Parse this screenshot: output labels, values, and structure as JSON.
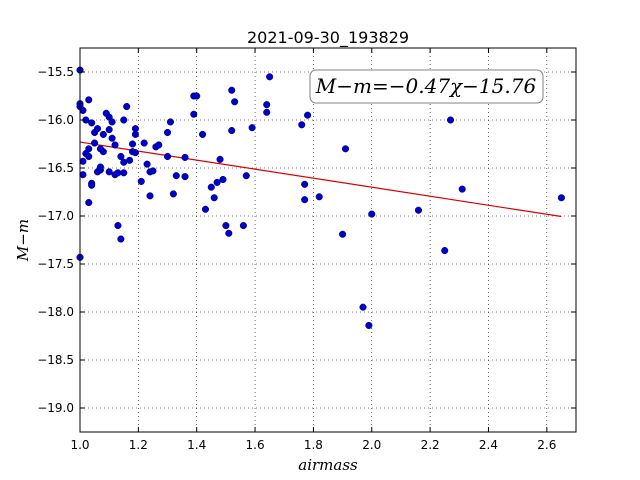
{
  "chart_data": {
    "type": "scatter",
    "title": "2021-09-30_193829",
    "xlabel": "airmass",
    "ylabel": "M−m",
    "xlim": [
      1.0,
      2.7
    ],
    "ylim": [
      -15.25,
      -19.25
    ],
    "y_inverted": true,
    "grid": true,
    "x_ticks": [
      1.0,
      1.2,
      1.4,
      1.6,
      1.8,
      2.0,
      2.2,
      2.4,
      2.6
    ],
    "x_tick_labels": [
      "1.0",
      "1.2",
      "1.4",
      "1.6",
      "1.8",
      "2.0",
      "2.2",
      "2.4",
      "2.6"
    ],
    "y_ticks": [
      -15.5,
      -16.0,
      -16.5,
      -17.0,
      -17.5,
      -18.0,
      -18.5,
      -19.0
    ],
    "y_tick_labels": [
      "−15.5",
      "−16.0",
      "−16.5",
      "−17.0",
      "−17.5",
      "−18.0",
      "−18.5",
      "−19.0"
    ],
    "annotation": "M−m=−0.47χ−15.76",
    "point_color": "#0000cc",
    "fit_color": "#dd0000",
    "fit": {
      "slope": -0.47,
      "intercept": -15.76,
      "x_range": [
        1.0,
        2.65
      ]
    },
    "points": [
      {
        "x": 1.0,
        "y": -15.48
      },
      {
        "x": 1.0,
        "y": -17.43
      },
      {
        "x": 1.0,
        "y": -15.83
      },
      {
        "x": 1.0,
        "y": -15.86
      },
      {
        "x": 1.01,
        "y": -15.9
      },
      {
        "x": 1.01,
        "y": -16.57
      },
      {
        "x": 1.01,
        "y": -16.43
      },
      {
        "x": 1.02,
        "y": -16.0
      },
      {
        "x": 1.02,
        "y": -16.35
      },
      {
        "x": 1.03,
        "y": -15.79
      },
      {
        "x": 1.03,
        "y": -16.3
      },
      {
        "x": 1.03,
        "y": -16.38
      },
      {
        "x": 1.03,
        "y": -16.86
      },
      {
        "x": 1.04,
        "y": -16.03
      },
      {
        "x": 1.04,
        "y": -16.66
      },
      {
        "x": 1.04,
        "y": -16.68
      },
      {
        "x": 1.05,
        "y": -16.13
      },
      {
        "x": 1.05,
        "y": -16.24
      },
      {
        "x": 1.06,
        "y": -16.54
      },
      {
        "x": 1.06,
        "y": -16.09
      },
      {
        "x": 1.07,
        "y": -16.52
      },
      {
        "x": 1.07,
        "y": -16.3
      },
      {
        "x": 1.07,
        "y": -16.49
      },
      {
        "x": 1.08,
        "y": -16.33
      },
      {
        "x": 1.08,
        "y": -16.15
      },
      {
        "x": 1.09,
        "y": -15.93
      },
      {
        "x": 1.1,
        "y": -16.1
      },
      {
        "x": 1.1,
        "y": -15.97
      },
      {
        "x": 1.1,
        "y": -16.54
      },
      {
        "x": 1.11,
        "y": -16.19
      },
      {
        "x": 1.11,
        "y": -16.02
      },
      {
        "x": 1.12,
        "y": -16.57
      },
      {
        "x": 1.12,
        "y": -16.26
      },
      {
        "x": 1.13,
        "y": -16.55
      },
      {
        "x": 1.13,
        "y": -17.1
      },
      {
        "x": 1.14,
        "y": -16.38
      },
      {
        "x": 1.14,
        "y": -17.24
      },
      {
        "x": 1.15,
        "y": -16.55
      },
      {
        "x": 1.15,
        "y": -16.44
      },
      {
        "x": 1.15,
        "y": -16.0
      },
      {
        "x": 1.16,
        "y": -15.86
      },
      {
        "x": 1.17,
        "y": -16.42
      },
      {
        "x": 1.18,
        "y": -16.33
      },
      {
        "x": 1.18,
        "y": -16.25
      },
      {
        "x": 1.19,
        "y": -16.09
      },
      {
        "x": 1.19,
        "y": -16.15
      },
      {
        "x": 1.19,
        "y": -16.34
      },
      {
        "x": 1.21,
        "y": -16.64
      },
      {
        "x": 1.22,
        "y": -16.24
      },
      {
        "x": 1.23,
        "y": -16.46
      },
      {
        "x": 1.24,
        "y": -16.54
      },
      {
        "x": 1.24,
        "y": -16.79
      },
      {
        "x": 1.25,
        "y": -16.53
      },
      {
        "x": 1.26,
        "y": -16.28
      },
      {
        "x": 1.27,
        "y": -16.26
      },
      {
        "x": 1.3,
        "y": -16.38
      },
      {
        "x": 1.3,
        "y": -16.13
      },
      {
        "x": 1.31,
        "y": -16.02
      },
      {
        "x": 1.32,
        "y": -16.77
      },
      {
        "x": 1.33,
        "y": -16.58
      },
      {
        "x": 1.36,
        "y": -16.59
      },
      {
        "x": 1.36,
        "y": -16.39
      },
      {
        "x": 1.39,
        "y": -15.75
      },
      {
        "x": 1.39,
        "y": -15.94
      },
      {
        "x": 1.4,
        "y": -15.75
      },
      {
        "x": 1.42,
        "y": -16.15
      },
      {
        "x": 1.43,
        "y": -16.93
      },
      {
        "x": 1.45,
        "y": -16.7
      },
      {
        "x": 1.46,
        "y": -16.81
      },
      {
        "x": 1.47,
        "y": -16.65
      },
      {
        "x": 1.48,
        "y": -16.41
      },
      {
        "x": 1.49,
        "y": -16.62
      },
      {
        "x": 1.5,
        "y": -17.1
      },
      {
        "x": 1.51,
        "y": -17.18
      },
      {
        "x": 1.52,
        "y": -16.11
      },
      {
        "x": 1.52,
        "y": -15.69
      },
      {
        "x": 1.53,
        "y": -15.81
      },
      {
        "x": 1.56,
        "y": -17.1
      },
      {
        "x": 1.57,
        "y": -16.58
      },
      {
        "x": 1.59,
        "y": -16.08
      },
      {
        "x": 1.64,
        "y": -15.92
      },
      {
        "x": 1.64,
        "y": -15.84
      },
      {
        "x": 1.65,
        "y": -15.55
      },
      {
        "x": 1.76,
        "y": -16.05
      },
      {
        "x": 1.77,
        "y": -16.83
      },
      {
        "x": 1.77,
        "y": -16.67
      },
      {
        "x": 1.78,
        "y": -15.95
      },
      {
        "x": 1.82,
        "y": -16.8
      },
      {
        "x": 1.9,
        "y": -17.19
      },
      {
        "x": 1.91,
        "y": -16.3
      },
      {
        "x": 1.97,
        "y": -17.95
      },
      {
        "x": 1.99,
        "y": -18.14
      },
      {
        "x": 2.0,
        "y": -16.98
      },
      {
        "x": 2.16,
        "y": -16.94
      },
      {
        "x": 2.25,
        "y": -17.36
      },
      {
        "x": 2.27,
        "y": -16.0
      },
      {
        "x": 2.31,
        "y": -16.72
      },
      {
        "x": 2.65,
        "y": -16.81
      }
    ]
  }
}
